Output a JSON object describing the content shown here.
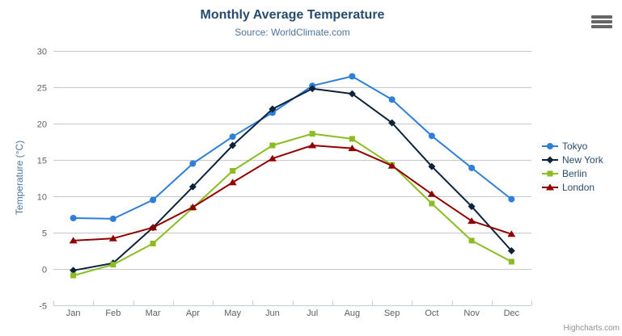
{
  "header": {
    "title": "Monthly Average Temperature",
    "subtitle": "Source: WorldClimate.com"
  },
  "credits": "Highcharts.com",
  "export_menu": {
    "icon": "hamburger-icon"
  },
  "colors": {
    "title": "#274b6d",
    "subtitle": "#4d759e",
    "axis_label": "#606060",
    "axis_line": "#c0d0e0",
    "grid_line": "#c8c8c8",
    "legend_text": "#274b6d",
    "credits_text": "#909090"
  },
  "chart_data": {
    "type": "line",
    "title": "Monthly Average Temperature",
    "subtitle": "Source: WorldClimate.com",
    "xlabel": "",
    "ylabel": "Temperature (°C)",
    "ylim": [
      -5,
      30
    ],
    "ytick_interval": 5,
    "grid": true,
    "legend_position": "right",
    "categories": [
      "Jan",
      "Feb",
      "Mar",
      "Apr",
      "May",
      "Jun",
      "Jul",
      "Aug",
      "Sep",
      "Oct",
      "Nov",
      "Dec"
    ],
    "series": [
      {
        "name": "Tokyo",
        "color": "#2f7ed8",
        "symbol": "circle",
        "values": [
          7.0,
          6.9,
          9.5,
          14.5,
          18.2,
          21.5,
          25.2,
          26.5,
          23.3,
          18.3,
          13.9,
          9.6
        ]
      },
      {
        "name": "New York",
        "color": "#0d233a",
        "symbol": "diamond",
        "values": [
          -0.2,
          0.8,
          5.7,
          11.3,
          17.0,
          22.0,
          24.8,
          24.1,
          20.1,
          14.1,
          8.6,
          2.5
        ]
      },
      {
        "name": "Berlin",
        "color": "#8bbc21",
        "symbol": "square",
        "values": [
          -0.9,
          0.6,
          3.5,
          8.4,
          13.5,
          17.0,
          18.6,
          17.9,
          14.3,
          9.0,
          3.9,
          1.0
        ]
      },
      {
        "name": "London",
        "color": "#910000",
        "symbol": "triangle",
        "values": [
          3.9,
          4.2,
          5.7,
          8.5,
          11.9,
          15.2,
          17.0,
          16.6,
          14.2,
          10.3,
          6.6,
          4.8
        ]
      }
    ]
  }
}
